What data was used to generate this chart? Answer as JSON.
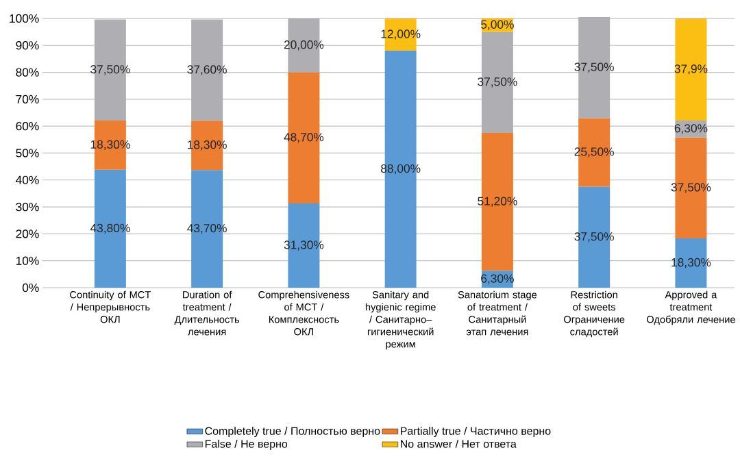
{
  "chart_data": {
    "type": "bar",
    "stacked": true,
    "categories": [
      "Continuity of MCT / Непрерывность ОКЛ",
      "Duration of treatment / Длительность лечения",
      "Comprehensiveness of MCT / Комплексность ОКЛ",
      "Sanitary and hygienic regime / Санитарно–гигиенический режим",
      "Sanatorium stage of treatment / Санитарный этап лечения",
      "Restriction of sweets Ограничение сладостей",
      "Approved a treatment Одобряли лечение"
    ],
    "series": [
      {
        "name": "Completely true / Полностью верно",
        "color": "#5b9bd5",
        "values": [
          43.8,
          43.7,
          31.3,
          88.0,
          6.3,
          37.5,
          18.3
        ],
        "value_labels": [
          "43,80%",
          "43,70%",
          "31,30%",
          "88,00%",
          "6,30%",
          "37,50%",
          "18,30%"
        ]
      },
      {
        "name": "Partially true / Частично верно",
        "color": "#ed7d31",
        "values": [
          18.3,
          18.3,
          48.7,
          null,
          51.2,
          25.5,
          37.5
        ],
        "value_labels": [
          "18,30%",
          "18,30%",
          "48,70%",
          null,
          "51,20%",
          "25,50%",
          "37,50%"
        ]
      },
      {
        "name": "False / Не верно",
        "color": "#afafb3",
        "values": [
          37.5,
          37.6,
          20.0,
          null,
          37.5,
          37.5,
          6.3
        ],
        "value_labels": [
          "37,50%",
          "37,60%",
          "20,00%",
          null,
          "37,50%",
          "37,50%",
          "6,30%"
        ]
      },
      {
        "name": "No answer / Нет ответа",
        "color": "#fbbf13",
        "values": [
          null,
          null,
          null,
          12.0,
          5.0,
          null,
          37.9
        ],
        "value_labels": [
          null,
          null,
          null,
          "12,00%",
          "5,00%",
          null,
          "37,9%"
        ]
      }
    ],
    "ylim": [
      0,
      100.5
    ],
    "yticks": [
      {
        "value": 0,
        "label": "0%"
      },
      {
        "value": 10,
        "label": "10%"
      },
      {
        "value": 20,
        "label": "20%"
      },
      {
        "value": 30,
        "label": "30%"
      },
      {
        "value": 40,
        "label": "40%"
      },
      {
        "value": 50,
        "label": "50%"
      },
      {
        "value": 60,
        "label": "60%"
      },
      {
        "value": 70,
        "label": "70%"
      },
      {
        "value": 80,
        "label": "80%"
      },
      {
        "value": 90,
        "label": "90%"
      },
      {
        "value": 100,
        "label": "100%"
      }
    ],
    "grid": "y",
    "legend": "bottom"
  }
}
